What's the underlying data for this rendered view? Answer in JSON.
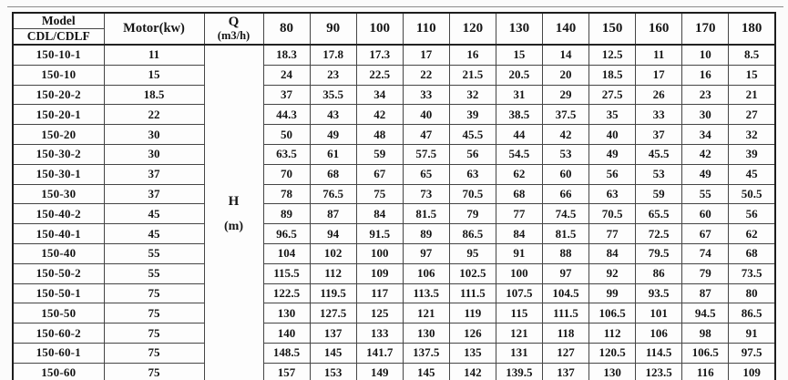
{
  "table": {
    "header": {
      "model_line1": "Model",
      "model_line2": "CDL/CDLF",
      "motor": "Motor(kw)",
      "q_line1": "Q",
      "q_line2": "(m3/h)",
      "flow_columns": [
        "80",
        "90",
        "100",
        "110",
        "120",
        "130",
        "140",
        "150",
        "160",
        "170",
        "180"
      ]
    },
    "head_unit": {
      "line1": "H",
      "line2": "(m)"
    },
    "rows": [
      {
        "model": "150-10-1",
        "motor_kw": "11",
        "head_values": [
          "18.3",
          "17.8",
          "17.3",
          "17",
          "16",
          "15",
          "14",
          "12.5",
          "11",
          "10",
          "8.5"
        ]
      },
      {
        "model": "150-10",
        "motor_kw": "15",
        "head_values": [
          "24",
          "23",
          "22.5",
          "22",
          "21.5",
          "20.5",
          "20",
          "18.5",
          "17",
          "16",
          "15"
        ]
      },
      {
        "model": "150-20-2",
        "motor_kw": "18.5",
        "head_values": [
          "37",
          "35.5",
          "34",
          "33",
          "32",
          "31",
          "29",
          "27.5",
          "26",
          "23",
          "21"
        ]
      },
      {
        "model": "150-20-1",
        "motor_kw": "22",
        "head_values": [
          "44.3",
          "43",
          "42",
          "40",
          "39",
          "38.5",
          "37.5",
          "35",
          "33",
          "30",
          "27"
        ]
      },
      {
        "model": "150-20",
        "motor_kw": "30",
        "head_values": [
          "50",
          "49",
          "48",
          "47",
          "45.5",
          "44",
          "42",
          "40",
          "37",
          "34",
          "32"
        ]
      },
      {
        "model": "150-30-2",
        "motor_kw": "30",
        "head_values": [
          "63.5",
          "61",
          "59",
          "57.5",
          "56",
          "54.5",
          "53",
          "49",
          "45.5",
          "42",
          "39"
        ]
      },
      {
        "model": "150-30-1",
        "motor_kw": "37",
        "head_values": [
          "70",
          "68",
          "67",
          "65",
          "63",
          "62",
          "60",
          "56",
          "53",
          "49",
          "45"
        ]
      },
      {
        "model": "150-30",
        "motor_kw": "37",
        "head_values": [
          "78",
          "76.5",
          "75",
          "73",
          "70.5",
          "68",
          "66",
          "63",
          "59",
          "55",
          "50.5"
        ]
      },
      {
        "model": "150-40-2",
        "motor_kw": "45",
        "head_values": [
          "89",
          "87",
          "84",
          "81.5",
          "79",
          "77",
          "74.5",
          "70.5",
          "65.5",
          "60",
          "56"
        ]
      },
      {
        "model": "150-40-1",
        "motor_kw": "45",
        "head_values": [
          "96.5",
          "94",
          "91.5",
          "89",
          "86.5",
          "84",
          "81.5",
          "77",
          "72.5",
          "67",
          "62"
        ]
      },
      {
        "model": "150-40",
        "motor_kw": "55",
        "head_values": [
          "104",
          "102",
          "100",
          "97",
          "95",
          "91",
          "88",
          "84",
          "79.5",
          "74",
          "68"
        ]
      },
      {
        "model": "150-50-2",
        "motor_kw": "55",
        "head_values": [
          "115.5",
          "112",
          "109",
          "106",
          "102.5",
          "100",
          "97",
          "92",
          "86",
          "79",
          "73.5"
        ]
      },
      {
        "model": "150-50-1",
        "motor_kw": "75",
        "head_values": [
          "122.5",
          "119.5",
          "117",
          "113.5",
          "111.5",
          "107.5",
          "104.5",
          "99",
          "93.5",
          "87",
          "80"
        ]
      },
      {
        "model": "150-50",
        "motor_kw": "75",
        "head_values": [
          "130",
          "127.5",
          "125",
          "121",
          "119",
          "115",
          "111.5",
          "106.5",
          "101",
          "94.5",
          "86.5"
        ]
      },
      {
        "model": "150-60-2",
        "motor_kw": "75",
        "head_values": [
          "140",
          "137",
          "133",
          "130",
          "126",
          "121",
          "118",
          "112",
          "106",
          "98",
          "91"
        ]
      },
      {
        "model": "150-60-1",
        "motor_kw": "75",
        "head_values": [
          "148.5",
          "145",
          "141.7",
          "137.5",
          "135",
          "131",
          "127",
          "120.5",
          "114.5",
          "106.5",
          "97.5"
        ]
      },
      {
        "model": "150-60",
        "motor_kw": "75",
        "head_values": [
          "157",
          "153",
          "149",
          "145",
          "142",
          "139.5",
          "137",
          "130",
          "123.5",
          "116",
          "109"
        ]
      }
    ]
  }
}
